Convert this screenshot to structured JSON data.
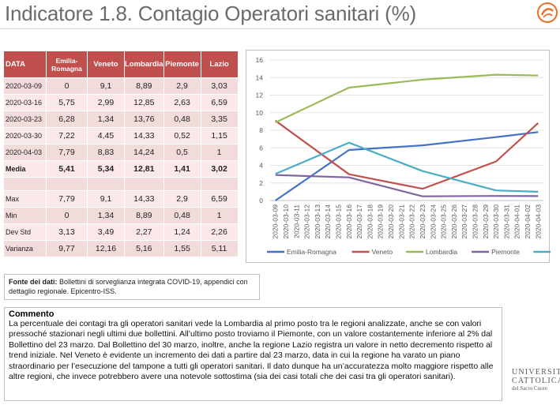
{
  "title": "Indicatore 1.8. Contagio Operatori sanitari (%)",
  "table": {
    "headers": [
      "DATA",
      "Emilia-Romagna",
      "Veneto",
      "Lombardia",
      "Piemonte",
      "Lazio"
    ],
    "rows": [
      {
        "date": "2020-03-09",
        "v": [
          "0",
          "9,1",
          "8,89",
          "2,9",
          "3,03"
        ]
      },
      {
        "date": "2020-03-16",
        "v": [
          "5,75",
          "2,99",
          "12,85",
          "2,63",
          "6,59"
        ]
      },
      {
        "date": "2020-03-23",
        "v": [
          "6,28",
          "1,34",
          "13,76",
          "0,48",
          "3,35"
        ]
      },
      {
        "date": "2020-03-30",
        "v": [
          "7,22",
          "4,45",
          "14,33",
          "0,52",
          "1,15"
        ]
      },
      {
        "date": "2020-04-03",
        "v": [
          "7,79",
          "8,83",
          "14,24",
          "0,5",
          "1"
        ]
      }
    ],
    "media": {
      "label": "Media",
      "v": [
        "5,41",
        "5,34",
        "12,81",
        "1,41",
        "3,02"
      ]
    },
    "stats": [
      {
        "label": "Max",
        "v": [
          "7,79",
          "9,1",
          "14,33",
          "2,9",
          "6,59"
        ]
      },
      {
        "label": "Min",
        "v": [
          "0",
          "1,34",
          "8,89",
          "0,48",
          "1"
        ]
      },
      {
        "label": "Dev Std",
        "v": [
          "3,13",
          "3,49",
          "2,27",
          "1,24",
          "2,26"
        ]
      },
      {
        "label": "Varianza",
        "v": [
          "9,77",
          "12,16",
          "5,16",
          "1,55",
          "5,11"
        ]
      }
    ]
  },
  "chart_data": {
    "type": "line",
    "x": [
      "2020-03-09",
      "2020-03-10",
      "2020-03-11",
      "2020-03-12",
      "2020-03-13",
      "2020-03-14",
      "2020-03-15",
      "2020-03-16",
      "2020-03-17",
      "2020-03-18",
      "2020-03-19",
      "2020-03-20",
      "2020-03-21",
      "2020-03-22",
      "2020-03-23",
      "2020-03-24",
      "2020-03-25",
      "2020-03-26",
      "2020-03-27",
      "2020-03-28",
      "2020-03-29",
      "2020-03-30",
      "2020-03-31",
      "2020-04-01",
      "2020-04-02",
      "2020-04-03"
    ],
    "ylim": [
      0,
      16
    ],
    "yticks": [
      "0",
      "2",
      "4",
      "6",
      "8",
      "10",
      "12",
      "14",
      "16"
    ],
    "legend_position": "bottom",
    "series": [
      {
        "name": "Emilia-Romagna",
        "color": "#4472c4",
        "points": [
          [
            0,
            0
          ],
          [
            7,
            5.75
          ],
          [
            14,
            6.28
          ],
          [
            21,
            7.22
          ],
          [
            25,
            7.79
          ]
        ]
      },
      {
        "name": "Veneto",
        "color": "#c0504d",
        "points": [
          [
            0,
            9.1
          ],
          [
            7,
            2.99
          ],
          [
            14,
            1.34
          ],
          [
            21,
            4.45
          ],
          [
            25,
            8.83
          ]
        ]
      },
      {
        "name": "Lombardia",
        "color": "#9bbb59",
        "points": [
          [
            0,
            8.89
          ],
          [
            7,
            12.85
          ],
          [
            14,
            13.76
          ],
          [
            21,
            14.33
          ],
          [
            25,
            14.24
          ]
        ]
      },
      {
        "name": "Piemonte",
        "color": "#8064a2",
        "points": [
          [
            0,
            2.9
          ],
          [
            7,
            2.63
          ],
          [
            14,
            0.48
          ],
          [
            21,
            0.52
          ],
          [
            25,
            0.5
          ]
        ]
      },
      {
        "name": "Lazio",
        "color": "#4bacc6",
        "points": [
          [
            0,
            3.03
          ],
          [
            7,
            6.59
          ],
          [
            14,
            3.35
          ],
          [
            21,
            1.15
          ],
          [
            25,
            1
          ]
        ]
      }
    ]
  },
  "source": {
    "label": "Fonte dei dati:",
    "text": "Bollettini di sorveglianza integrata COVID-19, appendici con dettaglio regionale. Epicentro-ISS."
  },
  "comment": {
    "title": "Commento",
    "text": "La percentuale dei contagi tra gli operatori sanitari vede la Lombardia al primo posto tra le regioni analizzate, anche se con valori pressoché stazionari negli ultimi due bollettini. All’ultimo posto troviamo il Piemonte, con un valore costantemente inferiore al 2% dal Bollettino del 23 marzo. Dal Bollettino del 30 marzo, inoltre, anche la regione Lazio registra un valore in netto decremento rispetto al trend iniziale. Nel Veneto è evidente un incremento dei dati a partire dal 23 marzo, data in cui la regione ha varato un piano straordinario per l’esecuzione del tampone a tutti gli operatori sanitari. Il dato dunque ha un’accuratezza molto maggiore rispetto alle altre regioni, che invece potrebbero avere una notevole sottostima (sia dei casi totali che dei casi tra gli operatori sanitari)."
  },
  "university": {
    "line1": "UNIVERSITÀ",
    "line2": "CATTOLICA",
    "line3": "del Sacro Cuore"
  },
  "colors": {
    "accent_red": "#c0504d",
    "row_light": "#f2dcdb",
    "row_lighter": "#fae9e8",
    "logo_orange": "#e8702a"
  }
}
